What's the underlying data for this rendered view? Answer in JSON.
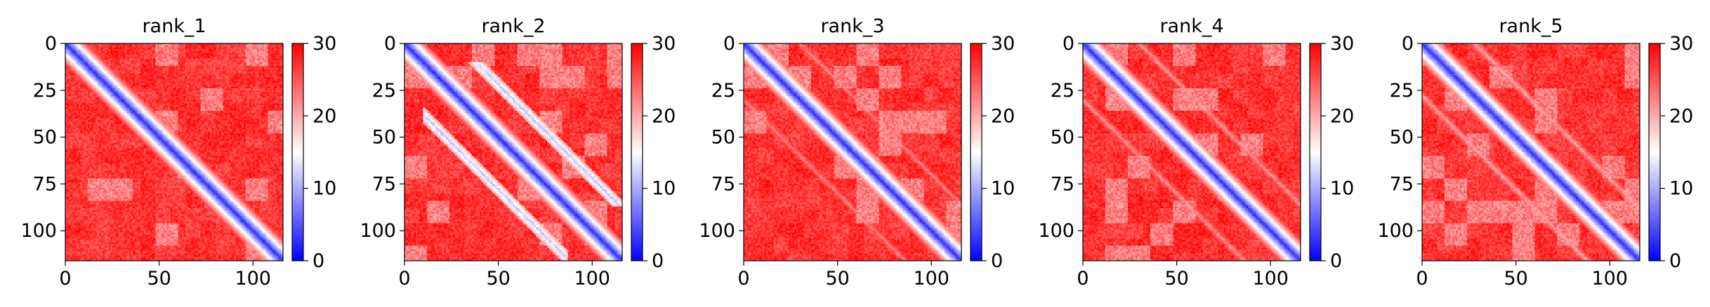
{
  "chart_data": [
    {
      "type": "heatmap",
      "title": "rank_1",
      "matrix_size": 116,
      "xlim": [
        0,
        116
      ],
      "ylim": [
        116,
        0
      ],
      "x_ticks": [
        0,
        50,
        100
      ],
      "y_ticks": [
        0,
        25,
        50,
        75,
        100
      ],
      "colorbar": {
        "min": 0,
        "max": 30,
        "ticks": [
          0,
          10,
          20,
          30
        ],
        "colormap": "bwr"
      },
      "pattern": {
        "diagonal_band_width": 5,
        "off_diagonal_bands": []
      }
    },
    {
      "type": "heatmap",
      "title": "rank_2",
      "matrix_size": 116,
      "xlim": [
        0,
        116
      ],
      "ylim": [
        116,
        0
      ],
      "x_ticks": [
        0,
        50,
        100
      ],
      "y_ticks": [
        0,
        25,
        50,
        75,
        100
      ],
      "colorbar": {
        "min": 0,
        "max": 30,
        "ticks": [
          0,
          10,
          20,
          30
        ],
        "colormap": "bwr"
      },
      "pattern": {
        "diagonal_band_width": 5,
        "off_diagonal_bands": [
          {
            "offset": 28,
            "start": 10,
            "end": 86,
            "value": 10
          },
          {
            "offset": -28,
            "start": 10,
            "end": 86,
            "value": 10
          }
        ]
      }
    },
    {
      "type": "heatmap",
      "title": "rank_3",
      "matrix_size": 116,
      "xlim": [
        0,
        116
      ],
      "ylim": [
        116,
        0
      ],
      "x_ticks": [
        0,
        50,
        100
      ],
      "y_ticks": [
        0,
        25,
        50,
        75,
        100
      ],
      "colorbar": {
        "min": 0,
        "max": 30,
        "ticks": [
          0,
          10,
          20,
          30
        ],
        "colormap": "bwr"
      },
      "pattern": {
        "diagonal_band_width": 5,
        "off_diagonal_bands": [
          {
            "offset": 30,
            "start": 0,
            "end": 116,
            "value": 21
          },
          {
            "offset": -30,
            "start": 0,
            "end": 116,
            "value": 21
          }
        ]
      }
    },
    {
      "type": "heatmap",
      "title": "rank_4",
      "matrix_size": 116,
      "xlim": [
        0,
        116
      ],
      "ylim": [
        116,
        0
      ],
      "x_ticks": [
        0,
        50,
        100
      ],
      "y_ticks": [
        0,
        25,
        50,
        75,
        100
      ],
      "colorbar": {
        "min": 0,
        "max": 30,
        "ticks": [
          0,
          10,
          20,
          30
        ],
        "colormap": "bwr"
      },
      "pattern": {
        "diagonal_band_width": 5,
        "off_diagonal_bands": [
          {
            "offset": 30,
            "start": 0,
            "end": 116,
            "value": 20
          },
          {
            "offset": -30,
            "start": 0,
            "end": 116,
            "value": 20
          }
        ]
      }
    },
    {
      "type": "heatmap",
      "title": "rank_5",
      "matrix_size": 116,
      "xlim": [
        0,
        116
      ],
      "ylim": [
        116,
        0
      ],
      "x_ticks": [
        0,
        50,
        100
      ],
      "y_ticks": [
        0,
        25,
        50,
        75,
        100
      ],
      "colorbar": {
        "min": 0,
        "max": 30,
        "ticks": [
          0,
          10,
          20,
          30
        ],
        "colormap": "bwr"
      },
      "pattern": {
        "diagonal_band_width": 5,
        "off_diagonal_bands": [
          {
            "offset": 28,
            "start": 0,
            "end": 116,
            "value": 19
          },
          {
            "offset": -28,
            "start": 0,
            "end": 116,
            "value": 19
          }
        ]
      }
    }
  ],
  "colors": {
    "low": "#0000ff",
    "mid": "#ffffff",
    "high": "#ff0000"
  }
}
